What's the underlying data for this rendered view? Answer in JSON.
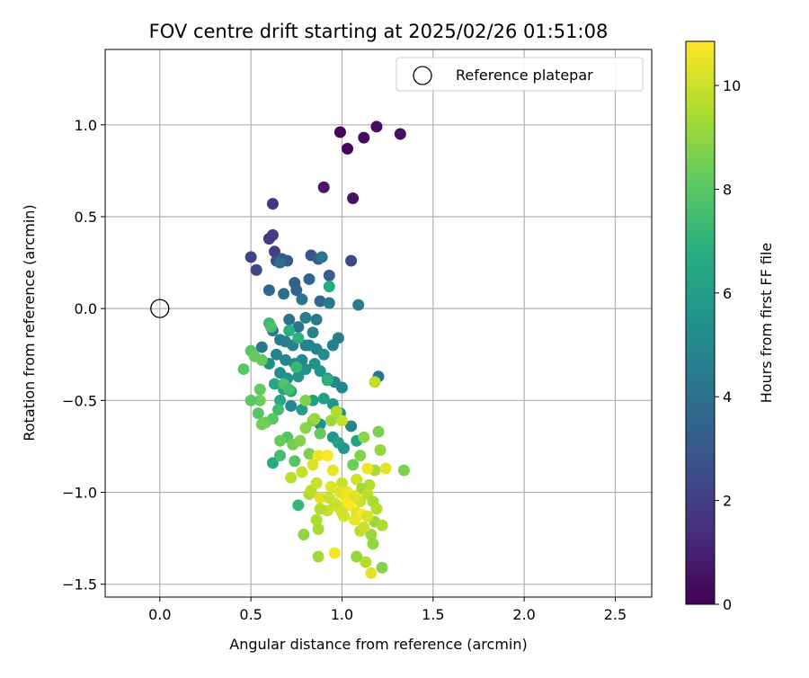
{
  "chart_data": {
    "type": "scatter",
    "title": "FOV centre drift starting at 2025/02/26 01:51:08",
    "xlabel": "Angular distance from reference (arcmin)",
    "ylabel": "Rotation from reference (arcmin)",
    "xlim": [
      -0.3,
      2.7
    ],
    "ylim": [
      -1.57,
      1.41
    ],
    "x_ticks": [
      0.0,
      0.5,
      1.0,
      1.5,
      2.0,
      2.5
    ],
    "x_tick_labels": [
      "0.0",
      "0.5",
      "1.0",
      "1.5",
      "2.0",
      "2.5"
    ],
    "y_ticks": [
      1.0,
      0.5,
      0.0,
      -0.5,
      -1.0,
      -1.5
    ],
    "y_tick_labels": [
      "1.0",
      "0.5",
      "0.0",
      "−0.5",
      "−1.0",
      "−1.5"
    ],
    "grid": true,
    "legend": {
      "placement": "top-right",
      "entries": [
        {
          "label": "Reference platepar",
          "marker": "open-circle"
        }
      ]
    },
    "reference_point": {
      "x": 0.0,
      "y": 0.0
    },
    "colorbar": {
      "label": "Hours from first FF file",
      "range": [
        0,
        10.85
      ],
      "ticks": [
        0,
        2,
        4,
        6,
        8,
        10
      ],
      "tick_labels": [
        "0",
        "2",
        "4",
        "6",
        "8",
        "10"
      ],
      "colormap": "viridis"
    },
    "series": [
      {
        "points": [
          [
            0.99,
            0.96,
            0.1
          ],
          [
            1.03,
            0.87,
            0.2
          ],
          [
            1.12,
            0.93,
            0.3
          ],
          [
            1.19,
            0.99,
            0.4
          ],
          [
            1.32,
            0.95,
            0.5
          ],
          [
            1.06,
            0.6,
            0.6
          ],
          [
            0.9,
            0.66,
            0.7
          ],
          [
            0.62,
            0.57,
            1.6
          ],
          [
            0.6,
            0.38,
            1.8
          ],
          [
            0.62,
            0.4,
            1.9
          ],
          [
            0.63,
            0.31,
            2.0
          ],
          [
            0.5,
            0.28,
            2.2
          ],
          [
            0.53,
            0.21,
            2.3
          ],
          [
            0.64,
            0.26,
            2.5
          ],
          [
            1.05,
            0.26,
            2.4
          ],
          [
            0.83,
            0.29,
            2.7
          ],
          [
            0.67,
            0.27,
            2.9
          ],
          [
            0.7,
            0.26,
            3.0
          ],
          [
            0.87,
            0.27,
            3.1
          ],
          [
            0.93,
            0.18,
            3.2
          ],
          [
            0.74,
            0.14,
            3.3
          ],
          [
            0.6,
            0.1,
            3.6
          ],
          [
            0.68,
            0.08,
            3.9
          ],
          [
            0.75,
            0.1,
            3.4
          ],
          [
            0.82,
            0.16,
            3.5
          ],
          [
            0.88,
            0.04,
            3.7
          ],
          [
            0.66,
            0.25,
            3.8
          ],
          [
            0.71,
            -0.06,
            4.0
          ],
          [
            0.76,
            -0.1,
            4.2
          ],
          [
            0.62,
            -0.12,
            4.4
          ],
          [
            0.66,
            -0.17,
            4.5
          ],
          [
            0.69,
            -0.18,
            4.6
          ],
          [
            0.73,
            -0.2,
            4.7
          ],
          [
            0.8,
            -0.2,
            4.8
          ],
          [
            0.56,
            -0.21,
            4.3
          ],
          [
            0.64,
            -0.25,
            4.9
          ],
          [
            0.69,
            -0.28,
            5.0
          ],
          [
            0.74,
            -0.3,
            5.1
          ],
          [
            0.78,
            -0.28,
            5.0
          ],
          [
            0.82,
            -0.2,
            4.8
          ],
          [
            0.86,
            -0.22,
            4.9
          ],
          [
            0.9,
            -0.25,
            5.2
          ],
          [
            0.95,
            -0.2,
            4.7
          ],
          [
            0.98,
            -0.16,
            4.6
          ],
          [
            0.6,
            -0.3,
            5.3
          ],
          [
            0.66,
            -0.35,
            5.4
          ],
          [
            0.7,
            -0.38,
            5.5
          ],
          [
            0.76,
            -0.37,
            5.6
          ],
          [
            0.8,
            -0.33,
            5.4
          ],
          [
            0.85,
            -0.3,
            5.5
          ],
          [
            0.88,
            -0.34,
            5.6
          ],
          [
            0.92,
            -0.38,
            5.8
          ],
          [
            0.96,
            -0.4,
            4.9
          ],
          [
            1.0,
            -0.43,
            5.0
          ],
          [
            1.2,
            -0.37,
            4.2
          ],
          [
            1.09,
            0.02,
            4.5
          ],
          [
            0.86,
            -0.06,
            4.4
          ],
          [
            0.8,
            -0.05,
            4.6
          ],
          [
            0.93,
            0.03,
            4.3
          ],
          [
            0.78,
            0.05,
            4.2
          ],
          [
            0.89,
            0.28,
            4.1
          ],
          [
            0.84,
            -0.13,
            4.8
          ],
          [
            0.72,
            -0.45,
            6.0
          ],
          [
            0.68,
            -0.44,
            6.2
          ],
          [
            0.63,
            -0.41,
            6.4
          ],
          [
            0.66,
            -0.5,
            6.5
          ],
          [
            0.72,
            -0.53,
            5.0
          ],
          [
            0.78,
            -0.55,
            5.9
          ],
          [
            0.84,
            -0.5,
            6.1
          ],
          [
            0.9,
            -0.49,
            6.0
          ],
          [
            0.95,
            -0.52,
            5.6
          ],
          [
            0.99,
            -0.57,
            5.3
          ],
          [
            1.05,
            -0.64,
            4.9
          ],
          [
            0.88,
            -0.63,
            5.4
          ],
          [
            0.95,
            -0.7,
            5.7
          ],
          [
            0.98,
            -0.73,
            6.2
          ],
          [
            1.01,
            -0.76,
            5.8
          ],
          [
            1.08,
            -0.72,
            6.3
          ],
          [
            0.93,
            0.12,
            6.7
          ],
          [
            0.71,
            -0.12,
            6.8
          ],
          [
            0.76,
            -0.16,
            6.9
          ],
          [
            0.6,
            -0.08,
            7.3
          ],
          [
            0.61,
            -0.1,
            7.6
          ],
          [
            0.75,
            -0.32,
            7.2
          ],
          [
            0.92,
            -0.39,
            6.9
          ],
          [
            0.68,
            -0.41,
            7.8
          ],
          [
            0.71,
            -0.44,
            7.5
          ],
          [
            0.65,
            -0.55,
            7.4
          ],
          [
            0.62,
            -0.6,
            8.0
          ],
          [
            0.58,
            -0.62,
            8.3
          ],
          [
            0.55,
            -0.5,
            8.4
          ],
          [
            0.5,
            -0.5,
            8.1
          ],
          [
            0.55,
            -0.44,
            8.2
          ],
          [
            0.46,
            -0.33,
            8.0
          ],
          [
            0.5,
            -0.23,
            8.0
          ],
          [
            0.52,
            -0.26,
            8.2
          ],
          [
            0.56,
            -0.28,
            8.3
          ],
          [
            0.54,
            -0.57,
            7.9
          ],
          [
            0.56,
            -0.63,
            8.5
          ],
          [
            0.7,
            -0.7,
            7.9
          ],
          [
            0.66,
            -0.72,
            8.3
          ],
          [
            0.73,
            -0.74,
            8.5
          ],
          [
            0.77,
            -0.72,
            8.8
          ],
          [
            0.82,
            -0.79,
            8.7
          ],
          [
            0.62,
            -0.84,
            6.6
          ],
          [
            0.66,
            -0.8,
            7.5
          ],
          [
            0.74,
            -0.83,
            7.9
          ],
          [
            0.76,
            -1.07,
            7.2
          ],
          [
            0.72,
            -0.92,
            9.7
          ],
          [
            0.8,
            -0.65,
            8.9
          ],
          [
            0.84,
            -0.61,
            8.6
          ],
          [
            0.88,
            -0.68,
            8.2
          ],
          [
            0.8,
            -0.5,
            8.7
          ],
          [
            0.85,
            -0.6,
            9.1
          ],
          [
            1.18,
            -0.4,
            9.8
          ],
          [
            0.94,
            -0.61,
            9.2
          ],
          [
            0.97,
            -0.56,
            9.5
          ],
          [
            1.0,
            -0.61,
            9.9
          ],
          [
            1.06,
            -0.85,
            8.4
          ],
          [
            1.1,
            -0.8,
            8.8
          ],
          [
            1.12,
            -0.7,
            8.9
          ],
          [
            1.2,
            -0.67,
            8.6
          ],
          [
            1.21,
            -0.77,
            9.1
          ],
          [
            1.18,
            -0.88,
            9.4
          ],
          [
            1.24,
            -0.87,
            10.4
          ],
          [
            1.14,
            -0.87,
            10.6
          ],
          [
            1.08,
            -0.93,
            10.1
          ],
          [
            1.15,
            -0.96,
            9.6
          ],
          [
            1.34,
            -0.88,
            8.7
          ],
          [
            1.11,
            -0.98,
            9.3
          ],
          [
            1.05,
            -1.03,
            10.2
          ],
          [
            1.0,
            -0.95,
            10.0
          ],
          [
            0.94,
            -0.97,
            10.3
          ],
          [
            0.88,
            -1.03,
            10.4
          ],
          [
            0.82,
            -1.01,
            9.5
          ],
          [
            0.83,
            -0.99,
            9.7
          ],
          [
            0.86,
            -0.95,
            10.0
          ],
          [
            0.78,
            -0.89,
            9.9
          ],
          [
            0.84,
            -0.85,
            10.2
          ],
          [
            0.87,
            -0.8,
            10.6
          ],
          [
            0.92,
            -0.8,
            10.8
          ],
          [
            0.95,
            -0.88,
            10.5
          ],
          [
            0.98,
            -1.08,
            10.2
          ],
          [
            1.02,
            -1.03,
            10.7
          ],
          [
            1.04,
            -1.07,
            10.9
          ],
          [
            1.08,
            -1.11,
            10.3
          ],
          [
            1.1,
            -1.05,
            10.0
          ],
          [
            1.14,
            -1.01,
            9.8
          ],
          [
            1.17,
            -1.05,
            9.4
          ],
          [
            1.19,
            -1.09,
            9.6
          ],
          [
            1.18,
            -1.16,
            9.2
          ],
          [
            1.11,
            -1.12,
            10.8
          ],
          [
            1.07,
            -1.15,
            10.5
          ],
          [
            1.01,
            -1.13,
            10.2
          ],
          [
            0.96,
            -1.06,
            10.0
          ],
          [
            0.92,
            -1.1,
            9.9
          ],
          [
            0.88,
            -1.09,
            9.6
          ],
          [
            0.86,
            -1.15,
            9.5
          ],
          [
            0.87,
            -1.2,
            9.4
          ],
          [
            0.79,
            -1.23,
            9.0
          ],
          [
            0.87,
            -1.35,
            9.3
          ],
          [
            0.96,
            -1.33,
            10.7
          ],
          [
            1.16,
            -1.23,
            9.2
          ],
          [
            1.17,
            -1.28,
            9.0
          ],
          [
            1.22,
            -1.18,
            9.5
          ],
          [
            1.1,
            -1.21,
            9.7
          ],
          [
            1.08,
            -1.35,
            9.1
          ],
          [
            1.13,
            -1.38,
            9.6
          ],
          [
            1.16,
            -1.44,
            10.4
          ],
          [
            1.22,
            -1.41,
            8.8
          ],
          [
            1.12,
            -1.19,
            10.0
          ],
          [
            1.14,
            -1.13,
            10.2
          ],
          [
            0.99,
            -1.0,
            10.4
          ],
          [
            1.03,
            -1.0,
            10.6
          ],
          [
            1.07,
            -1.02,
            10.3
          ],
          [
            1.0,
            -1.11,
            10.1
          ],
          [
            0.93,
            -1.03,
            10.0
          ]
        ]
      }
    ]
  }
}
